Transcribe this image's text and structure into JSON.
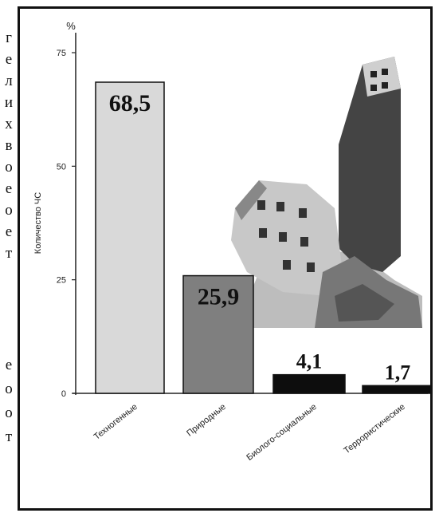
{
  "side_text": [
    "г",
    "е",
    "л",
    "и",
    "х",
    "в",
    "о",
    "е",
    "о",
    "е",
    "т",
    "е",
    "о",
    "о",
    "т"
  ],
  "chart_data": {
    "type": "bar",
    "title": "",
    "xlabel": "",
    "ylabel": "Количество ЧС",
    "unit_label": "%",
    "ylim": [
      0,
      75
    ],
    "yticks": [
      "0",
      "25",
      "50",
      "75"
    ],
    "grid": false,
    "categories": [
      "Техногенные",
      "Природные",
      "Биолого-социальные",
      "Террористические"
    ],
    "values": [
      68.5,
      25.9,
      4.1,
      1.7
    ],
    "value_labels": [
      "68,5",
      "25,9",
      "4,1",
      "1,7"
    ],
    "bar_colors": [
      "#d9d9d9",
      "#7f7f7f",
      "#0d0d0d",
      "#0d0d0d"
    ]
  }
}
